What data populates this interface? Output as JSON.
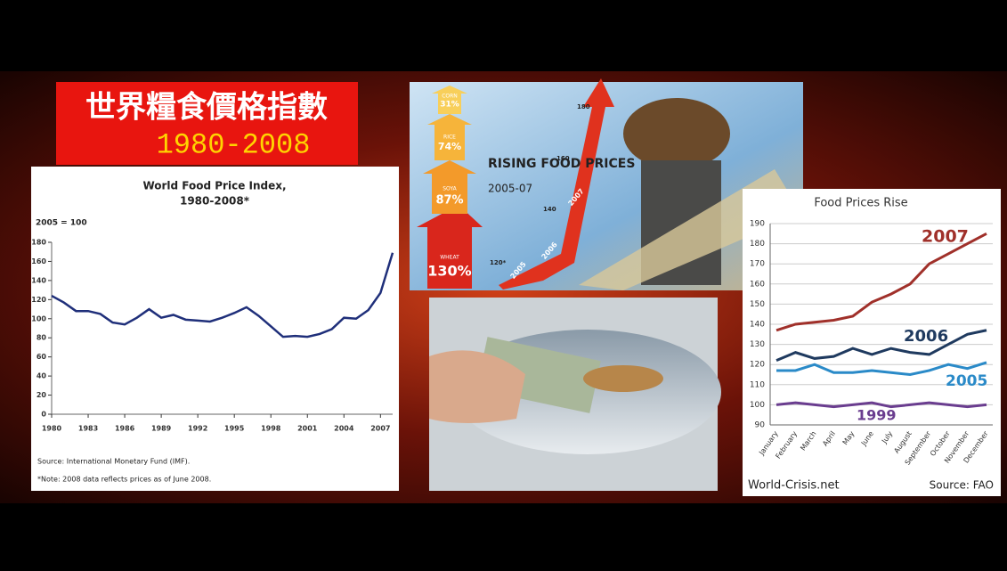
{
  "slide": {
    "title": "世界糧食價格指數",
    "subtitle": "1980-2008"
  },
  "infographic": {
    "title": "RISING FOOD PRICES",
    "subtitle": "2005-07",
    "items": [
      {
        "name": "CORN",
        "label": "31%"
      },
      {
        "name": "RICE",
        "label": "74%"
      },
      {
        "name": "SOYA",
        "label": "87%"
      },
      {
        "name": "WHEAT",
        "label": "130%"
      }
    ],
    "scale": [
      "120*",
      "140",
      "160",
      "180"
    ],
    "years": [
      "2005",
      "2006",
      "2007"
    ]
  },
  "chart_data": [
    {
      "type": "line",
      "title": "World Food Price Index,",
      "subtitle": "1980-2008*",
      "y_label": "2005 = 100",
      "x": [
        1980,
        1981,
        1982,
        1983,
        1984,
        1985,
        1986,
        1987,
        1988,
        1989,
        1990,
        1991,
        1992,
        1993,
        1994,
        1995,
        1996,
        1997,
        1998,
        1999,
        2000,
        2001,
        2002,
        2003,
        2004,
        2005,
        2006,
        2007,
        2008
      ],
      "series": [
        {
          "name": "World Food Price Index",
          "color": "#1f2f7a",
          "values": [
            124,
            117,
            108,
            108,
            105,
            96,
            94,
            101,
            110,
            101,
            104,
            99,
            98,
            97,
            101,
            106,
            112,
            103,
            92,
            81,
            82,
            81,
            84,
            89,
            101,
            100,
            109,
            127,
            169
          ]
        }
      ],
      "xlim": [
        1980,
        2008
      ],
      "xticks": [
        1980,
        1983,
        1986,
        1989,
        1992,
        1995,
        1998,
        2001,
        2004,
        2007
      ],
      "ylim": [
        0,
        180
      ],
      "yticks": [
        0,
        20,
        40,
        60,
        80,
        100,
        120,
        140,
        160,
        180
      ],
      "source": "Source: International Monetary Fund (IMF).",
      "note": "*Note: 2008 data reflects prices as of June 2008."
    },
    {
      "type": "line",
      "title": "Food Prices Rise",
      "categories": [
        "January",
        "February",
        "March",
        "April",
        "May",
        "June",
        "July",
        "August",
        "September",
        "October",
        "November",
        "December"
      ],
      "series": [
        {
          "name": "2007",
          "color": "#a0302a",
          "values": [
            137,
            140,
            141,
            142,
            144,
            151,
            155,
            160,
            170,
            175,
            180,
            185
          ]
        },
        {
          "name": "2006",
          "color": "#1f3a5f",
          "values": [
            122,
            126,
            123,
            124,
            128,
            125,
            128,
            126,
            125,
            130,
            135,
            137
          ]
        },
        {
          "name": "2005",
          "color": "#2a8ac8",
          "values": [
            117,
            117,
            120,
            116,
            116,
            117,
            116,
            115,
            117,
            120,
            118,
            121
          ]
        },
        {
          "name": "1999",
          "color": "#6a3d8f",
          "values": [
            100,
            101,
            100,
            99,
            100,
            101,
            99,
            100,
            101,
            100,
            99,
            100
          ]
        }
      ],
      "ylim": [
        90,
        190
      ],
      "yticks": [
        90,
        100,
        110,
        120,
        130,
        140,
        150,
        160,
        170,
        180,
        190
      ],
      "grid": true,
      "site": "World-Crisis.net",
      "source": "Source: FAO"
    }
  ]
}
